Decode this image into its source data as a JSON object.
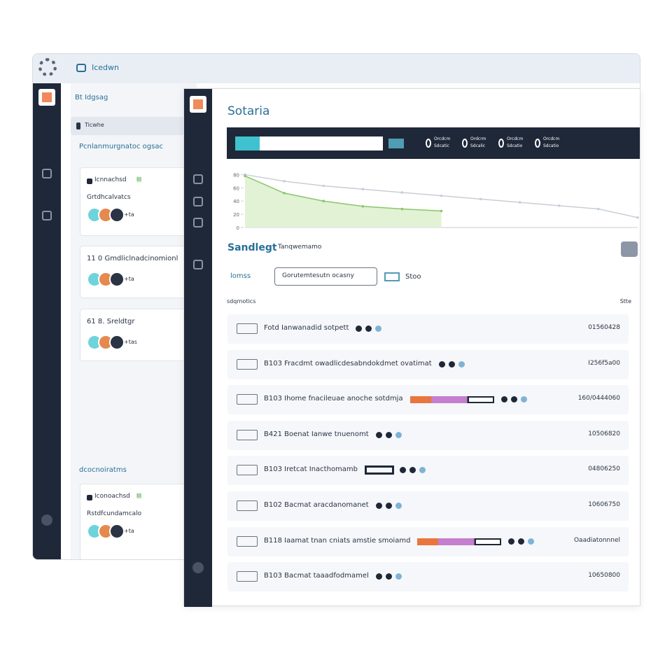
{
  "window": {
    "title": "Icedwn"
  },
  "sidebar": {
    "title": "Bt Idgsag",
    "selected": "Ticwhe",
    "sections": [
      "Pcnlanmurgnatoc ogsac",
      "dcocnoiratms"
    ]
  },
  "cards": [
    {
      "title": "Icnnachsd",
      "badge": "III",
      "subtitle": "Grtdhcalvatcs",
      "more": "+ta"
    },
    {
      "title": "11 0 Gmdliclnadcinomionl",
      "more": "+ta"
    },
    {
      "title": "61 8. Sreldtgr",
      "more": "+tas"
    },
    {
      "title": "Iconoachsd",
      "badge": "III",
      "subtitle": "Rstdfcundamcalo",
      "more": "+ta"
    }
  ],
  "main": {
    "title": "Sotaria",
    "stats": [
      {
        "label": "Orcdcm",
        "sub": "Sdcatic"
      },
      {
        "label": "Ordcrm",
        "sub": "Sdcalic"
      },
      {
        "label": "Orcdcm",
        "sub": "Sdcatio"
      },
      {
        "label": "Orcdcm",
        "sub": "Sdcatio"
      }
    ]
  },
  "chart_data": {
    "type": "line",
    "categories": [
      null,
      null,
      null,
      null,
      null,
      null,
      null,
      null,
      null,
      null,
      null
    ],
    "series": [
      {
        "color": "#c9ced6",
        "values": [
          80,
          70,
          63,
          58,
          53,
          48,
          43,
          38,
          33,
          28,
          15
        ]
      },
      {
        "color": "#8cc56a",
        "values": [
          78,
          52,
          40,
          32,
          28,
          25,
          null,
          null,
          null,
          null,
          null
        ]
      }
    ],
    "ylim": [
      0,
      90
    ],
    "yticks": [
      0,
      20,
      40,
      60,
      80
    ]
  },
  "list": {
    "title": "Sandlegt",
    "subtitle": "Tanqwemamo",
    "filter": "lomss",
    "search": "Gorutemtesutn ocasny",
    "sort": "Stoo",
    "columns": [
      "sdqrnotics",
      "Stte"
    ],
    "rows": [
      {
        "text": "Fotd Ianwanadid sotpett",
        "status": "01560428",
        "bar": "none"
      },
      {
        "text": "B103 Fracdmt owadlicdesabndokdmet ovatimat",
        "status": "I256f5a00",
        "bar": "none"
      },
      {
        "text": "B103 Ihome fnacileuae anoche sotdmja",
        "status": "160/0444060",
        "bar": "progress"
      },
      {
        "text": "B421 Boenat Ianwe tnuenomt",
        "status": "10506820",
        "bar": "none"
      },
      {
        "text": "B103 Iretcat Inacthomamb",
        "status": "04806250",
        "bar": "outline"
      },
      {
        "text": "B102 Bacmat aracdanomanet",
        "status": "10606750",
        "bar": "none"
      },
      {
        "text": "B118 Iaamat tnan cniats amstie smoiamd",
        "status": "Oaadiatonnnel",
        "bar": "progress"
      },
      {
        "text": "B103 Bacmat taaadfodmamel",
        "status": "10650800",
        "bar": "none"
      }
    ]
  }
}
